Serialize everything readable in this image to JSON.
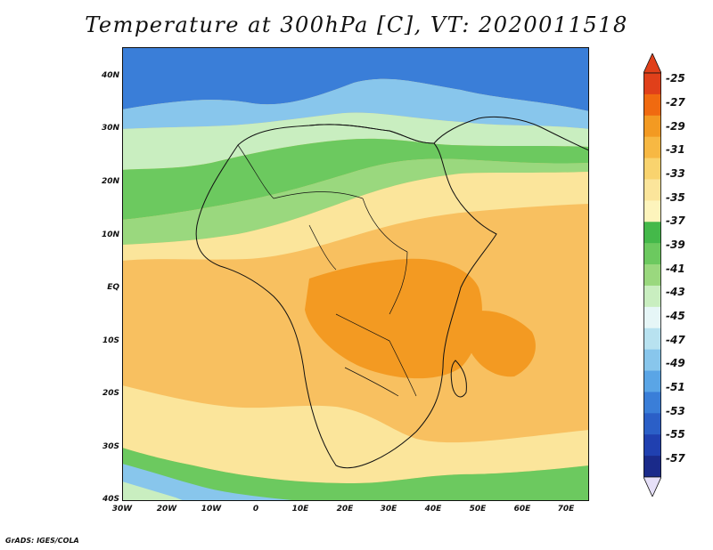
{
  "title": "Temperature at 300hPa [C], VT: 2020011518",
  "footer": "GrADS: IGES/COLA",
  "map": {
    "lat_labels": [
      "40N",
      "30N",
      "20N",
      "10N",
      "EQ",
      "10S",
      "20S",
      "30S",
      "40S"
    ],
    "lon_labels": [
      "30W",
      "20W",
      "10W",
      "0",
      "10E",
      "20E",
      "30E",
      "40E",
      "50E",
      "60E",
      "70E"
    ],
    "lat_range": [
      -40,
      45
    ],
    "lon_range": [
      -30,
      75
    ],
    "variable": "temperature",
    "level": "300hPa",
    "units": "C",
    "valid_time": "2020011518"
  },
  "colorbar": {
    "labels": [
      "-25",
      "-27",
      "-29",
      "-31",
      "-33",
      "-35",
      "-37",
      "-39",
      "-41",
      "-43",
      "-45",
      "-47",
      "-49",
      "-51",
      "-53",
      "-55",
      "-57"
    ],
    "colors": [
      "#e0401a",
      "#f06a10",
      "#f39a22",
      "#f7b843",
      "#f9d36e",
      "#fbe59b",
      "#fdf4bc",
      "#44b94a",
      "#6cc95f",
      "#9ad87e",
      "#c9eec0",
      "#e6f6f7",
      "#b8e2f0",
      "#88c6ec",
      "#5aa5e6",
      "#3a7ed8",
      "#2b5fc7",
      "#2040b0",
      "#1a2a8a"
    ],
    "top_triangle_color": "#e0401a",
    "bottom_triangle_color": "#e6e0f8"
  }
}
